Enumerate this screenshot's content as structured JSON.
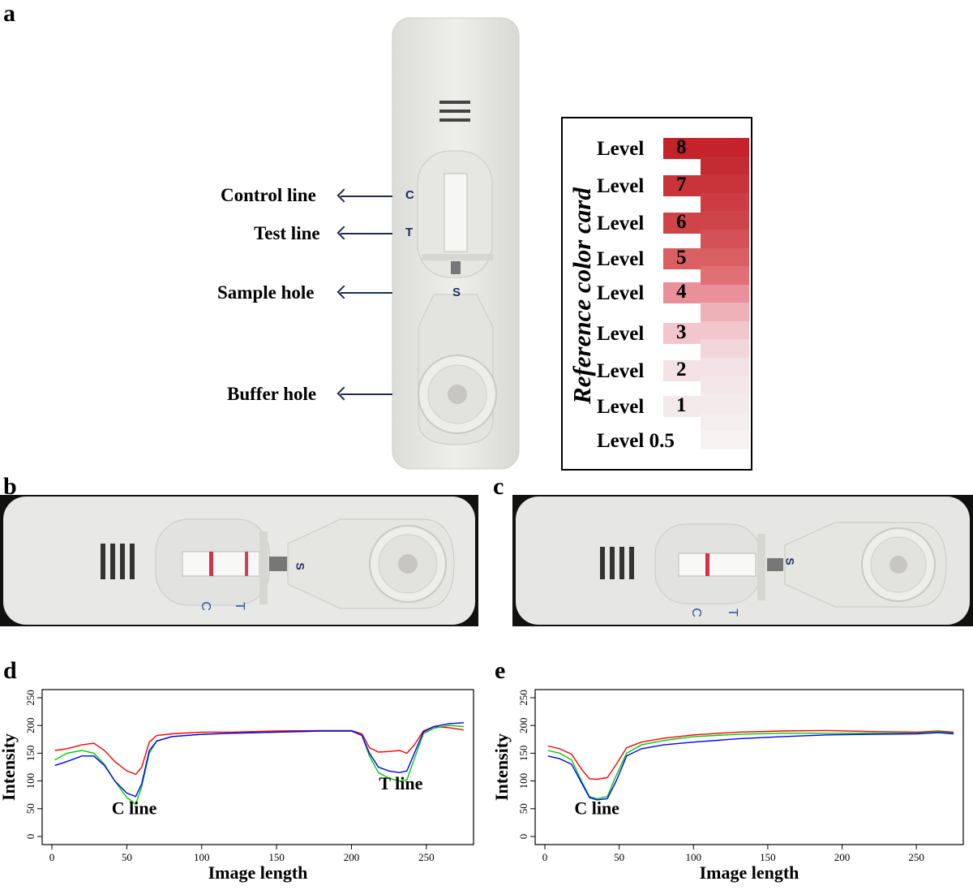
{
  "panels": {
    "a": "a",
    "b": "b",
    "c": "c",
    "d": "d",
    "e": "e"
  },
  "device_labels": {
    "control_line": "Control line",
    "test_line": "Test line",
    "sample_hole": "Sample hole",
    "buffer_hole": "Buffer hole"
  },
  "device_marks": {
    "c": "C",
    "t": "T",
    "s": "S"
  },
  "color_card": {
    "title": "Reference color card",
    "levels": [
      {
        "label": "Level",
        "num": "8",
        "color": "#c4232b"
      },
      {
        "label": "Level",
        "num": "7",
        "color": "#c8343a"
      },
      {
        "label": "Level",
        "num": "6",
        "color": "#cf4449"
      },
      {
        "label": "Level",
        "num": "5",
        "color": "#da5f62"
      },
      {
        "label": "Level",
        "num": "4",
        "color": "#e9909a"
      },
      {
        "label": "Level",
        "num": "3",
        "color": "#f1c7cd"
      },
      {
        "label": "Level",
        "num": "2",
        "color": "#f3e2e5"
      },
      {
        "label": "Level",
        "num": "1",
        "color": "#f3eaec"
      },
      {
        "label": "Level 0.5",
        "num": "",
        "color": "#f7f3f3"
      }
    ],
    "strip_colors": [
      "#c4232b",
      "#c52b32",
      "#c8343a",
      "#cc3c42",
      "#cf4449",
      "#d45257",
      "#da5f62",
      "#e07075",
      "#e9909a",
      "#efb1b8",
      "#f1c7cd",
      "#f2d6da",
      "#f3e2e5",
      "#f3e7e9",
      "#f3eaec",
      "#f5eeef",
      "#f7f3f3"
    ]
  },
  "chart_data": [
    {
      "panel": "d",
      "type": "line",
      "xlabel": "Image length",
      "ylabel": "Intensity",
      "xlim": [
        0,
        275
      ],
      "ylim": [
        0,
        250
      ],
      "xticks": [
        "0",
        "50",
        "100",
        "150",
        "200",
        "250"
      ],
      "yticks": [
        "0",
        "50",
        "100",
        "150",
        "200",
        "250"
      ],
      "annotations": [
        {
          "text": "C line",
          "x": 55,
          "y": 40
        },
        {
          "text": "T line",
          "x": 233,
          "y": 85
        }
      ],
      "series": [
        {
          "color": "#ff0000",
          "x": [
            2,
            10,
            20,
            28,
            35,
            42,
            50,
            56,
            60,
            65,
            70,
            80,
            100,
            120,
            150,
            180,
            200,
            207,
            212,
            218,
            225,
            232,
            237,
            242,
            248,
            255,
            265,
            275
          ],
          "y": [
            155,
            158,
            165,
            168,
            155,
            135,
            118,
            112,
            125,
            170,
            182,
            185,
            188,
            188,
            190,
            191,
            191,
            185,
            160,
            152,
            153,
            155,
            150,
            165,
            190,
            198,
            196,
            192
          ]
        },
        {
          "color": "#00cc00",
          "x": [
            2,
            10,
            20,
            28,
            35,
            42,
            50,
            56,
            60,
            65,
            70,
            80,
            100,
            120,
            150,
            180,
            200,
            207,
            212,
            218,
            225,
            232,
            237,
            242,
            248,
            255,
            265,
            275
          ],
          "y": [
            138,
            150,
            155,
            150,
            130,
            100,
            70,
            58,
            90,
            150,
            172,
            180,
            184,
            186,
            188,
            190,
            190,
            182,
            145,
            115,
            105,
            100,
            102,
            140,
            185,
            195,
            200,
            198
          ]
        },
        {
          "color": "#0000ff",
          "x": [
            2,
            10,
            20,
            28,
            35,
            42,
            50,
            56,
            60,
            65,
            70,
            80,
            100,
            120,
            150,
            180,
            200,
            207,
            212,
            218,
            225,
            232,
            237,
            242,
            248,
            255,
            265,
            275
          ],
          "y": [
            128,
            135,
            145,
            145,
            128,
            100,
            78,
            72,
            95,
            155,
            172,
            180,
            184,
            186,
            188,
            190,
            190,
            182,
            150,
            125,
            118,
            115,
            118,
            150,
            188,
            198,
            203,
            205
          ]
        }
      ]
    },
    {
      "panel": "e",
      "type": "line",
      "xlabel": "Image length",
      "ylabel": "Intensity",
      "xlim": [
        0,
        275
      ],
      "ylim": [
        0,
        250
      ],
      "xticks": [
        "0",
        "50",
        "100",
        "150",
        "200",
        "250"
      ],
      "yticks": [
        "0",
        "50",
        "100",
        "150",
        "200",
        "250"
      ],
      "annotations": [
        {
          "text": "C line",
          "x": 35,
          "y": 40
        }
      ],
      "series": [
        {
          "color": "#ff0000",
          "x": [
            2,
            10,
            18,
            25,
            30,
            35,
            42,
            48,
            55,
            65,
            80,
            100,
            130,
            160,
            190,
            220,
            250,
            265,
            275
          ],
          "y": [
            163,
            158,
            148,
            120,
            104,
            103,
            106,
            130,
            160,
            170,
            177,
            183,
            188,
            190,
            191,
            189,
            188,
            190,
            188
          ]
        },
        {
          "color": "#00cc00",
          "x": [
            2,
            10,
            18,
            25,
            30,
            35,
            42,
            48,
            55,
            65,
            80,
            100,
            130,
            160,
            190,
            220,
            250,
            265,
            275
          ],
          "y": [
            155,
            150,
            138,
            98,
            72,
            68,
            72,
            110,
            150,
            165,
            173,
            180,
            184,
            186,
            186,
            186,
            186,
            189,
            186
          ]
        },
        {
          "color": "#0000ff",
          "x": [
            2,
            10,
            18,
            25,
            30,
            35,
            42,
            48,
            55,
            65,
            80,
            100,
            130,
            160,
            190,
            220,
            250,
            265,
            275
          ],
          "y": [
            145,
            140,
            130,
            95,
            70,
            66,
            68,
            100,
            145,
            158,
            165,
            170,
            176,
            180,
            183,
            184,
            185,
            187,
            185
          ]
        }
      ]
    }
  ]
}
